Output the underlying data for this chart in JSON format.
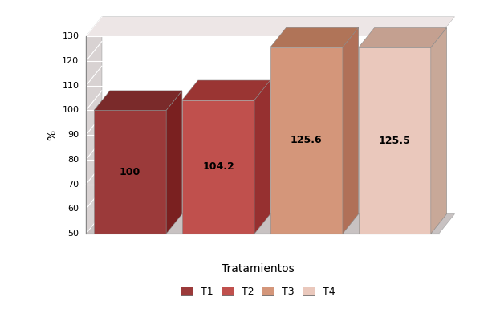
{
  "categories": [
    "T1",
    "T2",
    "T3",
    "T4"
  ],
  "values": [
    100,
    104.2,
    125.6,
    125.5
  ],
  "bar_colors_front": [
    "#9B3A3A",
    "#C0504D",
    "#D4967A",
    "#EAC8BC"
  ],
  "bar_colors_top": [
    "#7A2A2A",
    "#9A3533",
    "#B07458",
    "#C4A090"
  ],
  "bar_colors_side": [
    "#7A2020",
    "#963030",
    "#B07058",
    "#C8A898"
  ],
  "xlabel": "Tratamientos",
  "ylabel": "%",
  "ylim_min": 50,
  "ylim_max": 130,
  "yticks": [
    50,
    60,
    70,
    80,
    90,
    100,
    110,
    120,
    130
  ],
  "legend_labels": [
    "T1",
    "T2",
    "T3",
    "T4"
  ],
  "legend_colors": [
    "#9B3A3A",
    "#C0504D",
    "#D4967A",
    "#EAC8BC"
  ],
  "value_labels": [
    "100",
    "104.2",
    "125.6",
    "125.5"
  ],
  "bg_outer": "#FFFFFF",
  "bg_plot": "#F0EAEA",
  "wall_color": "#D8D0D0",
  "floor_color": "#C8C0C0",
  "grid_color": "#FFFFFF"
}
